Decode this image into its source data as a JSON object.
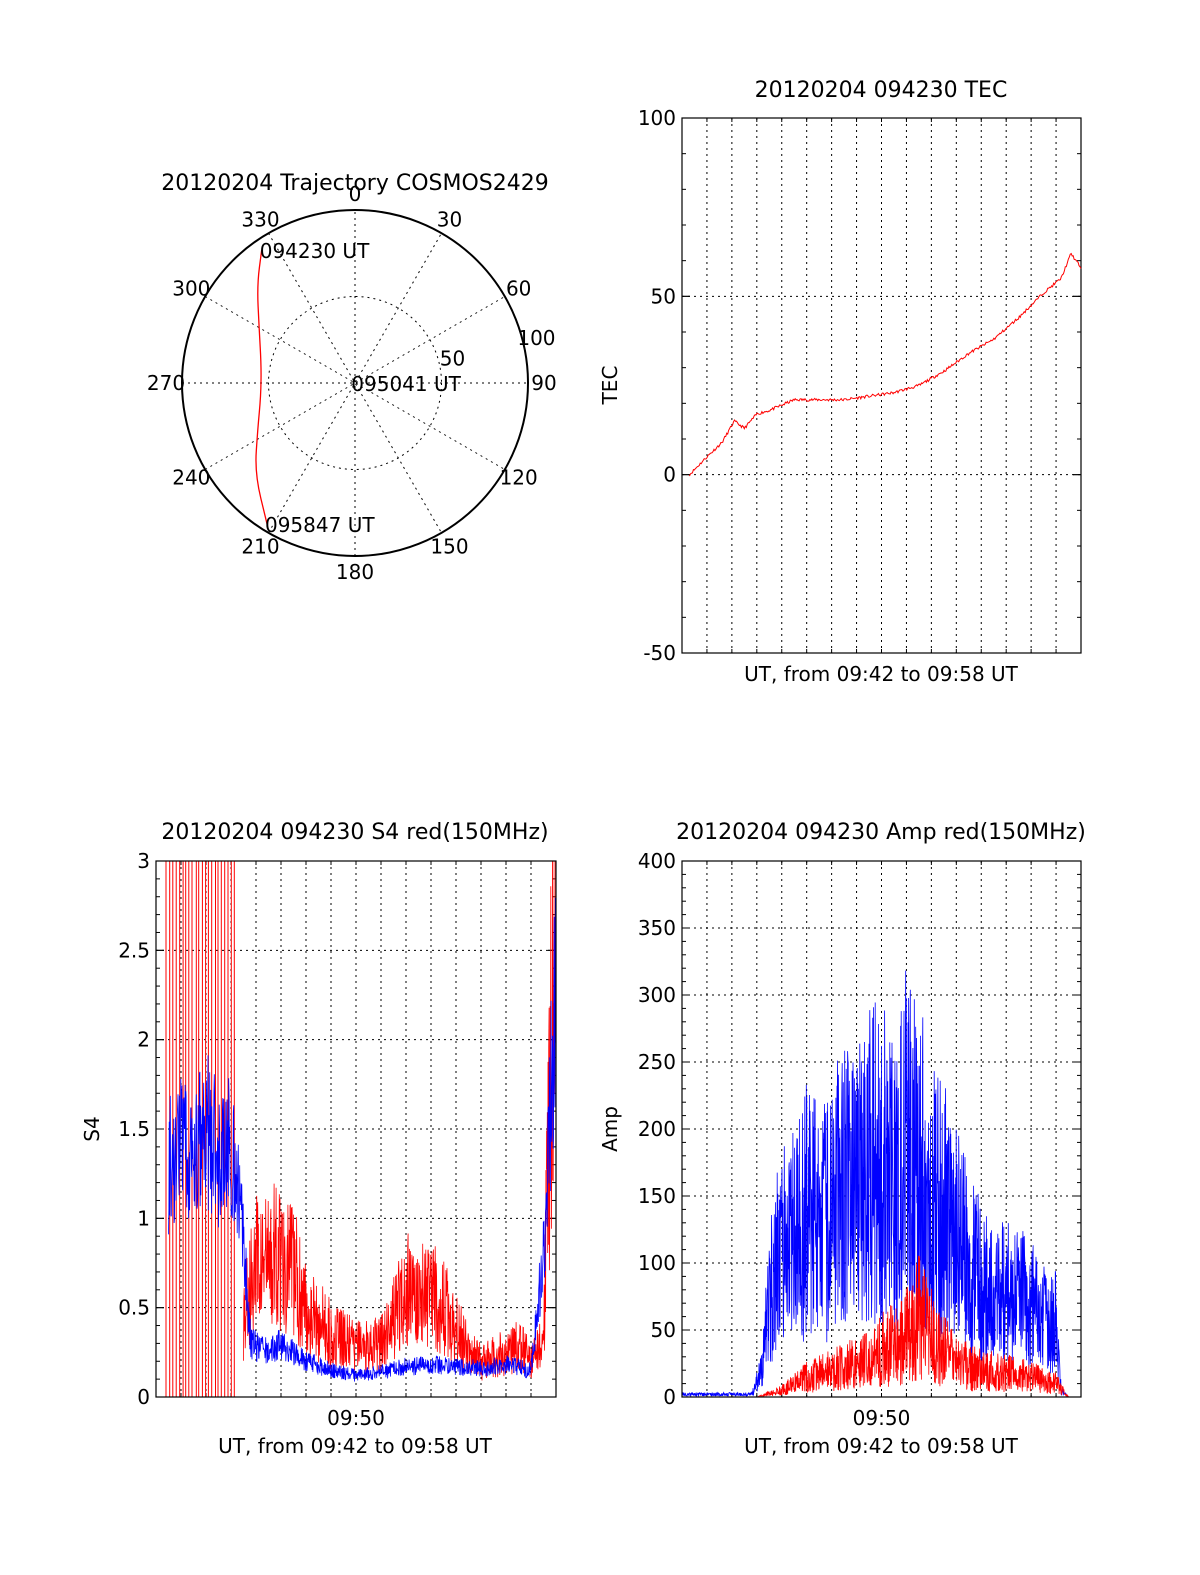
{
  "chart_data": [
    {
      "type": "polar",
      "title": "20120204 Trajectory COSMOS2429",
      "azimuth_labels": [
        "0",
        "30",
        "60",
        "90",
        "120",
        "150",
        "180",
        "210",
        "240",
        "270",
        "300",
        "330"
      ],
      "radial_ticks": [
        50,
        100
      ],
      "rlim": [
        0,
        100
      ],
      "series": [
        {
          "color": "#ff0000",
          "points": [
            {
              "az": 325,
              "r": 94
            },
            {
              "az": 315,
              "r": 80
            },
            {
              "az": 300,
              "r": 64
            },
            {
              "az": 280,
              "r": 55
            },
            {
              "az": 262,
              "r": 55
            },
            {
              "az": 245,
              "r": 62
            },
            {
              "az": 228,
              "r": 78
            },
            {
              "az": 212,
              "r": 96
            }
          ]
        }
      ],
      "annotations": [
        {
          "text": "094230 UT",
          "az": 325,
          "r": 94
        },
        {
          "text": "095041 UT",
          "az": 270,
          "r": 1
        },
        {
          "text": "095847 UT",
          "az": 212,
          "r": 96
        }
      ]
    },
    {
      "type": "line",
      "title": "20120204 094230 TEC",
      "xlabel": "UT, from 09:42 to 09:58 UT",
      "ylabel": "TEC",
      "xlim": [
        0,
        16
      ],
      "ylim": [
        -50,
        100
      ],
      "yticks": [
        -50,
        0,
        50,
        100
      ],
      "series": [
        {
          "color": "#ff0000",
          "x": [
            0.3,
            1.0,
            1.6,
            2.1,
            2.5,
            3.0,
            3.5,
            4.5,
            5.5,
            6.5,
            7.5,
            8.5,
            9.5,
            10.5,
            11.5,
            12.5,
            13.5,
            14.5,
            15.2,
            15.6,
            16.0
          ],
          "y": [
            0,
            5,
            9,
            15,
            13,
            17,
            18,
            21,
            21,
            21,
            22,
            23,
            25,
            29,
            34,
            38,
            44,
            51,
            55,
            62,
            58
          ]
        }
      ]
    },
    {
      "type": "line",
      "title": "20120204 094230 S4 red(150MHz)",
      "xlabel": "UT, from 09:42 to 09:58 UT",
      "ylabel": "S4",
      "xlim": [
        0,
        16
      ],
      "ylim": [
        0,
        3
      ],
      "yticks": [
        0,
        0.5,
        1,
        1.5,
        2,
        2.5,
        3
      ],
      "xticks": [
        {
          "value": 8,
          "label": "09:50"
        }
      ],
      "series": [
        {
          "color": "#ff0000",
          "x": [
            3.5,
            4.0,
            4.5,
            5.0,
            5.5,
            6.0,
            7.0,
            8.0,
            9.0,
            9.5,
            10.0,
            10.5,
            11.0,
            11.5,
            12.0,
            12.5,
            13.0,
            13.5,
            14.0,
            14.5,
            15.0,
            15.5,
            16.0
          ],
          "y": [
            0.45,
            0.75,
            0.75,
            0.8,
            0.7,
            0.5,
            0.35,
            0.28,
            0.3,
            0.45,
            0.6,
            0.55,
            0.6,
            0.5,
            0.4,
            0.25,
            0.2,
            0.22,
            0.25,
            0.3,
            0.2,
            0.3,
            3.0
          ]
        },
        {
          "color": "#0000ff",
          "x": [
            0.5,
            1.0,
            1.5,
            2.0,
            2.5,
            3.0,
            3.4,
            3.8,
            4.5,
            5.0,
            6.0,
            7.0,
            8.0,
            9.0,
            10.0,
            11.0,
            12.0,
            13.0,
            14.0,
            15.0,
            15.5,
            16.0
          ],
          "y": [
            1.3,
            1.4,
            1.3,
            1.5,
            1.35,
            1.4,
            1.0,
            0.3,
            0.25,
            0.3,
            0.2,
            0.15,
            0.12,
            0.14,
            0.17,
            0.18,
            0.17,
            0.16,
            0.18,
            0.15,
            0.8,
            2.3
          ]
        }
      ]
    },
    {
      "type": "line",
      "title": "20120204 094230 Amp red(150MHz)",
      "xlabel": "UT, from 09:42 to 09:58 UT",
      "ylabel": "Amp",
      "xlim": [
        0,
        16
      ],
      "ylim": [
        0,
        400
      ],
      "yticks": [
        0,
        50,
        100,
        150,
        200,
        250,
        300,
        350,
        400
      ],
      "xticks": [
        {
          "value": 8,
          "label": "09:50"
        }
      ],
      "series": [
        {
          "color": "#ff0000",
          "x": [
            0,
            3.0,
            4.0,
            5.0,
            6.0,
            7.0,
            8.0,
            9.0,
            9.5,
            10.0,
            11.0,
            12.0,
            13.0,
            14.0,
            15.0,
            15.5,
            16.0
          ],
          "y": [
            0,
            0,
            5,
            15,
            20,
            25,
            35,
            45,
            60,
            45,
            25,
            20,
            18,
            15,
            10,
            0,
            0
          ]
        },
        {
          "color": "#0000ff",
          "x": [
            0,
            2.8,
            3.2,
            3.5,
            4.0,
            4.5,
            5.0,
            5.5,
            6.0,
            6.5,
            7.0,
            7.5,
            8.0,
            8.5,
            9.0,
            9.5,
            10.0,
            10.5,
            11.0,
            11.5,
            12.0,
            12.5,
            13.0,
            13.5,
            14.0,
            14.5,
            15.0,
            15.2,
            15.5,
            16.0
          ],
          "y": [
            2,
            2,
            20,
            80,
            110,
            120,
            140,
            130,
            140,
            160,
            150,
            170,
            180,
            160,
            190,
            170,
            160,
            140,
            120,
            100,
            90,
            70,
            80,
            75,
            70,
            60,
            55,
            5,
            0,
            0
          ]
        }
      ]
    }
  ]
}
